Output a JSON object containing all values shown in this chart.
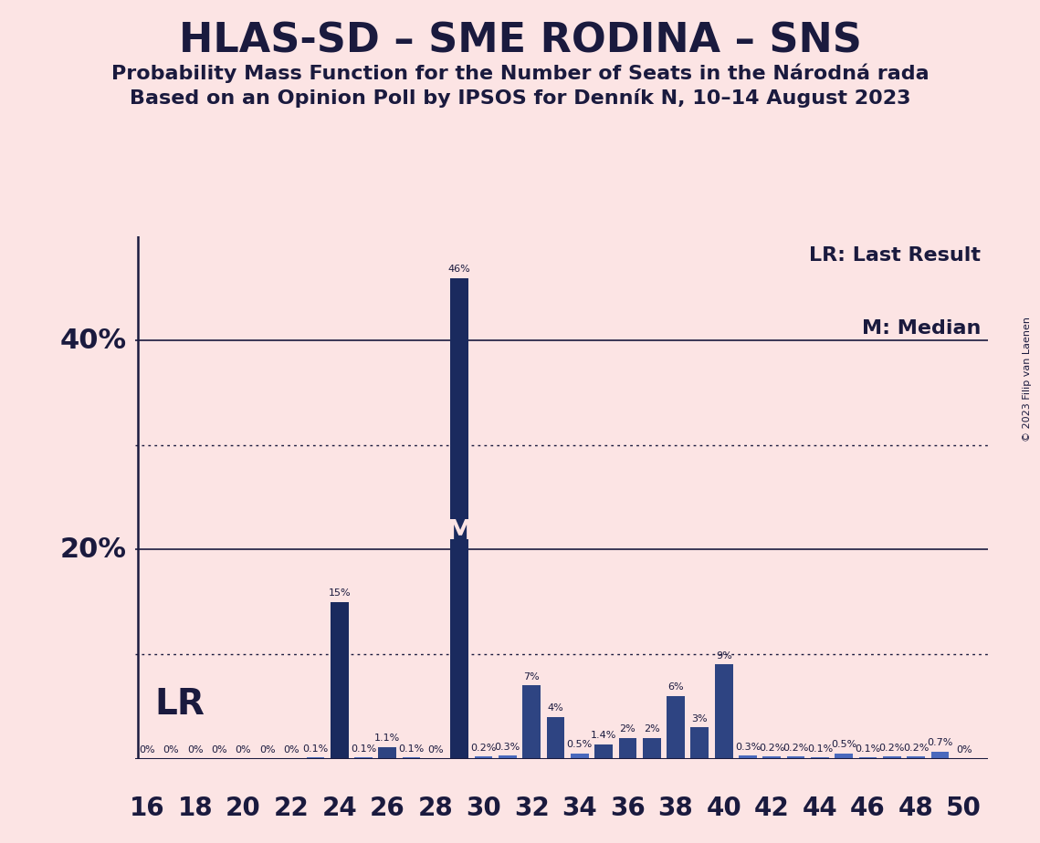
{
  "title": "HLAS-SD – SME RODINA – SNS",
  "subtitle1": "Probability Mass Function for the Number of Seats in the Národná rada",
  "subtitle2": "Based on an Opinion Poll by IPSOS for Denník N, 10–14 August 2023",
  "copyright": "© 2023 Filip van Laenen",
  "seats": [
    16,
    17,
    18,
    19,
    20,
    21,
    22,
    23,
    24,
    25,
    26,
    27,
    28,
    29,
    30,
    31,
    32,
    33,
    34,
    35,
    36,
    37,
    38,
    39,
    40,
    41,
    42,
    43,
    44,
    45,
    46,
    47,
    48,
    49,
    50
  ],
  "values": [
    0.0,
    0.0,
    0.0,
    0.0,
    0.0,
    0.0,
    0.0,
    0.1,
    15.0,
    0.1,
    1.1,
    0.1,
    0.0,
    46.0,
    0.2,
    0.3,
    7.0,
    4.0,
    0.5,
    1.4,
    2.0,
    2.0,
    6.0,
    3.0,
    9.0,
    0.3,
    0.2,
    0.2,
    0.1,
    0.5,
    0.1,
    0.2,
    0.2,
    0.7,
    0.0
  ],
  "bar_color_dark": "#1a2a5e",
  "bar_color_medium": "#2e4482",
  "bar_color_light": "#4a69bd",
  "background_color": "#fce4e4",
  "lr_seat": 24,
  "median_seat": 29,
  "ylim_max": 50,
  "solid_yticks": [
    20,
    40
  ],
  "dotted_yticks": [
    10,
    30
  ],
  "xlim_start": 15.5,
  "xlim_end": 51.0,
  "xtick_seats": [
    16,
    18,
    20,
    22,
    24,
    26,
    28,
    30,
    32,
    34,
    36,
    38,
    40,
    42,
    44,
    46,
    48,
    50
  ],
  "label_fontsize": 8,
  "ytick_label_fontsize": 22,
  "xtick_label_fontsize": 20,
  "title_fontsize": 32,
  "subtitle_fontsize": 16,
  "legend_fontsize": 16,
  "lr_fontsize": 28,
  "m_fontsize": 22,
  "copyright_fontsize": 8
}
